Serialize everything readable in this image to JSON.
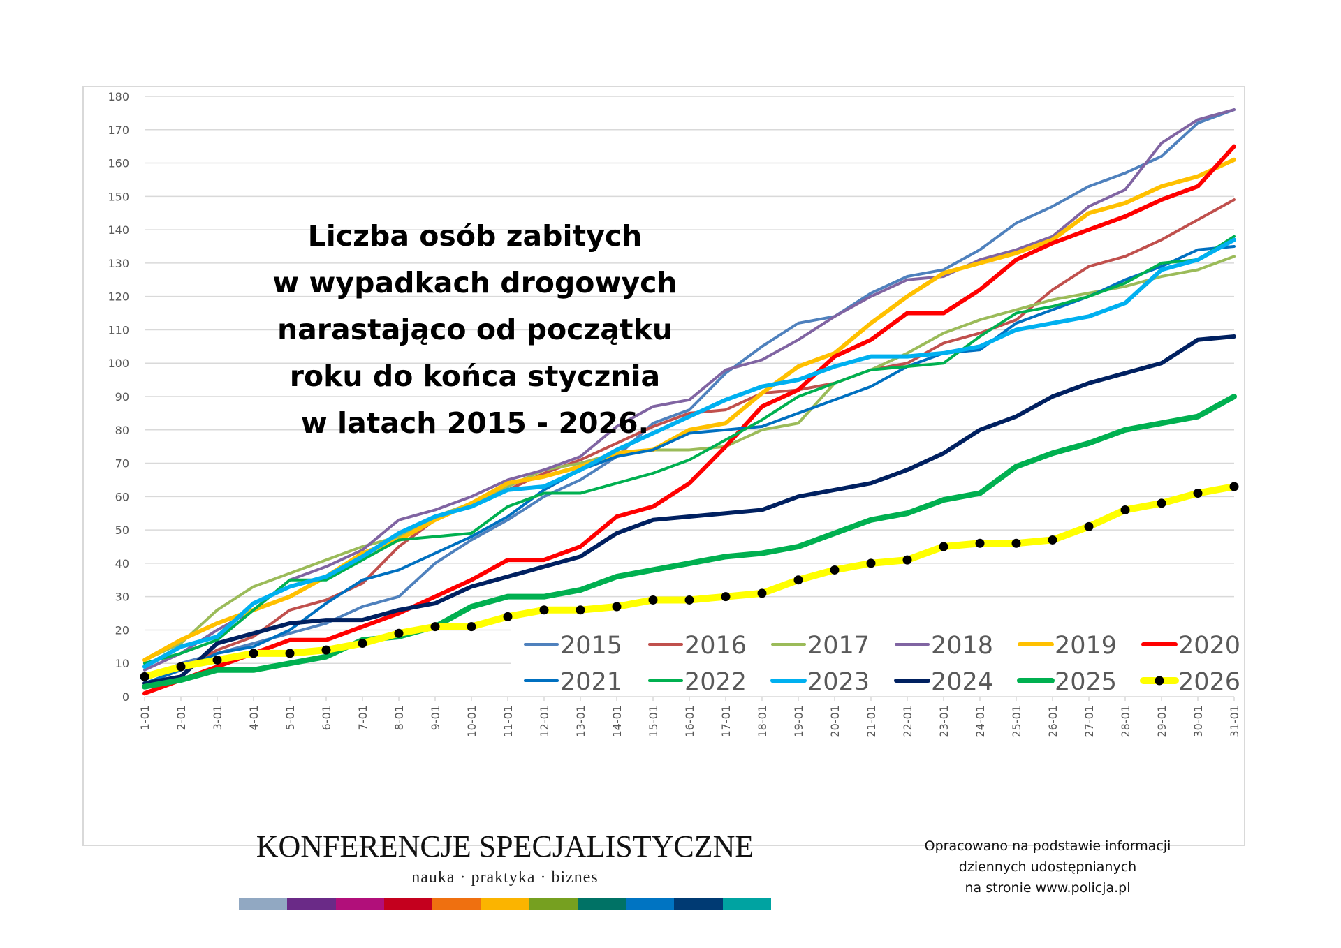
{
  "chart_data": {
    "type": "line",
    "title": "Liczba osób zabitych\nw wypadkach drogowych\nnarastająco od początku\nroku do końca stycznia\nw latach 2015 - 2026.",
    "xlabel": "",
    "ylabel": "",
    "ylim": [
      0,
      180
    ],
    "ytick_step": 10,
    "grid": true,
    "legend_position": "bottom-right",
    "categories": [
      "1-01",
      "2-01",
      "3-01",
      "4-01",
      "5-01",
      "6-01",
      "7-01",
      "8-01",
      "9-01",
      "10-01",
      "11-01",
      "12-01",
      "13-01",
      "14-01",
      "15-01",
      "16-01",
      "17-01",
      "18-01",
      "19-01",
      "20-01",
      "21-01",
      "22-01",
      "23-01",
      "24-01",
      "25-01",
      "26-01",
      "27-01",
      "28-01",
      "29-01",
      "30-01",
      "31-01"
    ],
    "series": [
      {
        "name": "2015",
        "color": "#4f81bd",
        "values": [
          5,
          10,
          13,
          16,
          19,
          22,
          27,
          30,
          40,
          47,
          53,
          60,
          65,
          72,
          82,
          86,
          97,
          105,
          112,
          114,
          121,
          126,
          128,
          134,
          142,
          147,
          153,
          157,
          162,
          172,
          176
        ]
      },
      {
        "name": "2016",
        "color": "#c0504d",
        "values": [
          4,
          8,
          14,
          18,
          26,
          29,
          34,
          45,
          53,
          58,
          62,
          67,
          71,
          76,
          81,
          85,
          86,
          91,
          92,
          94,
          98,
          100,
          106,
          109,
          113,
          122,
          129,
          132,
          137,
          143,
          149
        ]
      },
      {
        "name": "2017",
        "color": "#9bbb59",
        "values": [
          11,
          16,
          26,
          33,
          37,
          41,
          45,
          48,
          54,
          58,
          63,
          68,
          70,
          73,
          74,
          74,
          75,
          80,
          82,
          94,
          98,
          103,
          109,
          113,
          116,
          119,
          121,
          123,
          126,
          128,
          132
        ]
      },
      {
        "name": "2018",
        "color": "#8064a2",
        "values": [
          8,
          13,
          20,
          26,
          35,
          39,
          44,
          53,
          56,
          60,
          65,
          68,
          72,
          81,
          87,
          89,
          98,
          101,
          107,
          114,
          120,
          125,
          126,
          131,
          134,
          138,
          147,
          152,
          166,
          173,
          176
        ]
      },
      {
        "name": "2019",
        "color": "#ffc000",
        "values": [
          11,
          17,
          22,
          26,
          30,
          36,
          43,
          47,
          53,
          58,
          64,
          66,
          69,
          73,
          74,
          80,
          82,
          91,
          99,
          103,
          112,
          120,
          127,
          130,
          133,
          137,
          145,
          148,
          153,
          156,
          161
        ]
      },
      {
        "name": "2020",
        "color": "#ff0000",
        "values": [
          1,
          5,
          9,
          13,
          17,
          17,
          21,
          25,
          30,
          35,
          41,
          41,
          45,
          54,
          57,
          64,
          75,
          87,
          92,
          102,
          107,
          115,
          115,
          122,
          131,
          136,
          140,
          144,
          149,
          153,
          165
        ]
      },
      {
        "name": "2021",
        "color": "#0070c0",
        "values": [
          4,
          8,
          13,
          15,
          20,
          28,
          35,
          38,
          43,
          48,
          54,
          62,
          68,
          72,
          74,
          79,
          80,
          81,
          85,
          89,
          93,
          99,
          103,
          104,
          112,
          116,
          120,
          125,
          129,
          134,
          135
        ]
      },
      {
        "name": "2022",
        "color": "#00b050",
        "values": [
          10,
          13,
          17,
          26,
          35,
          35,
          41,
          47,
          48,
          49,
          57,
          61,
          61,
          64,
          67,
          71,
          77,
          83,
          90,
          94,
          98,
          99,
          100,
          108,
          115,
          117,
          120,
          124,
          130,
          131,
          138
        ]
      },
      {
        "name": "2023",
        "color": "#00b0f0",
        "values": [
          9,
          15,
          18,
          28,
          33,
          36,
          42,
          49,
          54,
          57,
          62,
          63,
          68,
          74,
          79,
          84,
          89,
          93,
          95,
          99,
          102,
          102,
          103,
          105,
          110,
          112,
          114,
          118,
          128,
          131,
          137
        ]
      },
      {
        "name": "2024",
        "color": "#002060",
        "values": [
          4,
          6,
          16,
          19,
          22,
          23,
          23,
          26,
          28,
          33,
          36,
          39,
          42,
          49,
          53,
          54,
          55,
          56,
          60,
          62,
          64,
          68,
          73,
          80,
          84,
          90,
          94,
          97,
          100,
          107,
          108
        ]
      },
      {
        "name": "2025",
        "color": "#00b050",
        "values": [
          3,
          5,
          8,
          8,
          10,
          12,
          17,
          18,
          21,
          27,
          30,
          30,
          32,
          36,
          38,
          40,
          42,
          43,
          45,
          49,
          53,
          55,
          59,
          61,
          69,
          73,
          76,
          80,
          82,
          84,
          90
        ]
      },
      {
        "name": "2026",
        "color": "#ffff00",
        "marker_color": "#000000",
        "values": [
          6,
          9,
          11,
          13,
          13,
          14,
          16,
          19,
          21,
          21,
          24,
          26,
          26,
          27,
          29,
          29,
          30,
          31,
          35,
          38,
          40,
          41,
          45,
          46,
          46,
          47,
          51,
          56,
          58,
          61,
          63
        ]
      }
    ]
  },
  "footnote": "Opracowano na podstawie informacji\ndziennych udostępnianych\nna stronie www.policja.pl",
  "logo": {
    "name": "KONFERENCJE SPECJALISTYCZNE",
    "tagline": "nauka · praktyka · biznes",
    "stripe_colors": [
      "#91a8c2",
      "#6a2a87",
      "#b10f7a",
      "#c4001e",
      "#ef7010",
      "#fbb400",
      "#76a020",
      "#007265",
      "#0074c2",
      "#003a73",
      "#00a3a1"
    ]
  }
}
